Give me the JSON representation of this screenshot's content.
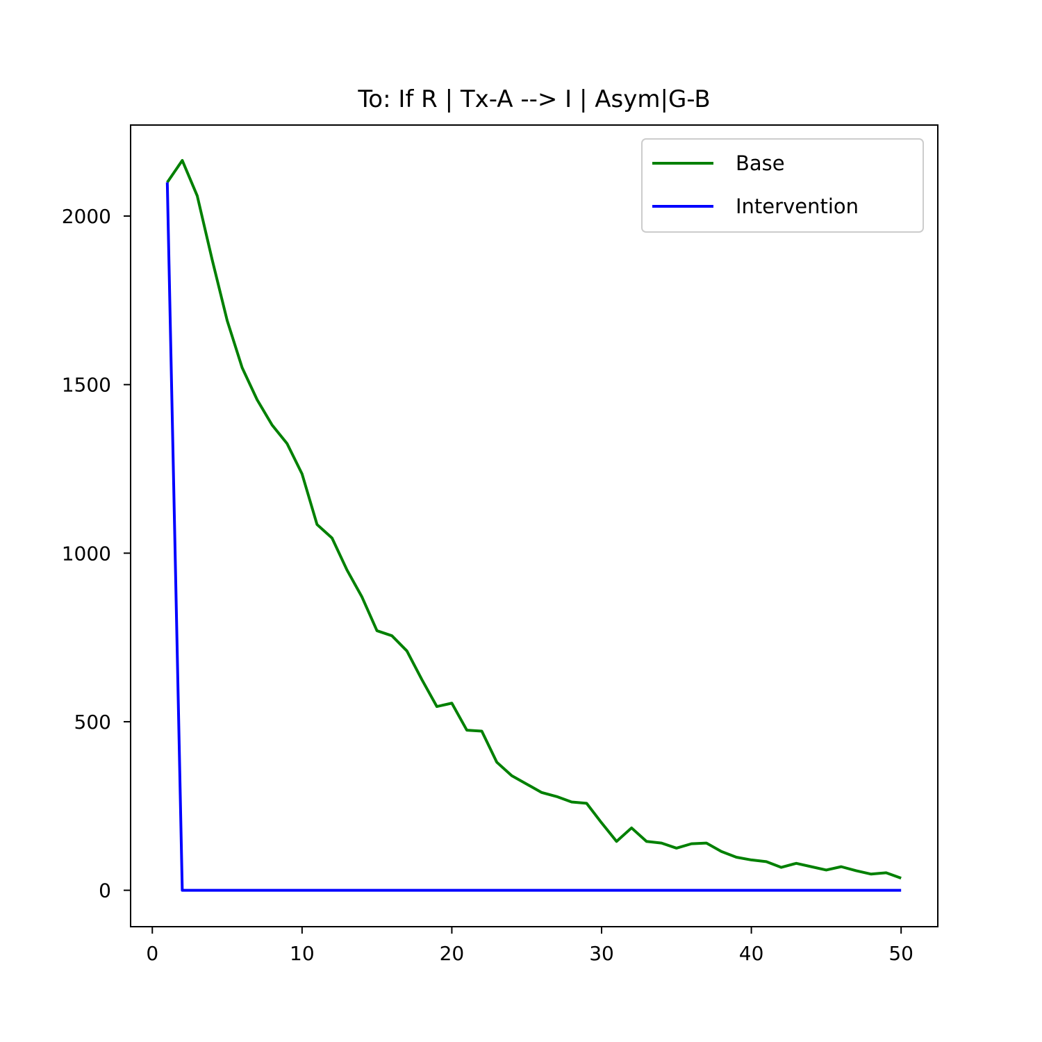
{
  "chart_data": {
    "type": "line",
    "title": "To: If R | Tx-A --> I | Asym|G-B",
    "xlabel": "",
    "ylabel": "",
    "xlim": [
      -1.45,
      52.45
    ],
    "ylim": [
      -108,
      2270
    ],
    "xticks": [
      0,
      10,
      20,
      30,
      40,
      50
    ],
    "yticks": [
      0,
      500,
      1000,
      1500,
      2000
    ],
    "grid": false,
    "legend_position": "upper right",
    "x": [
      1,
      2,
      3,
      4,
      5,
      6,
      7,
      8,
      9,
      10,
      11,
      12,
      13,
      14,
      15,
      16,
      17,
      18,
      19,
      20,
      21,
      22,
      23,
      24,
      25,
      26,
      27,
      28,
      29,
      30,
      31,
      32,
      33,
      34,
      35,
      36,
      37,
      38,
      39,
      40,
      41,
      42,
      43,
      44,
      45,
      46,
      47,
      48,
      49,
      50
    ],
    "series": [
      {
        "name": "Base",
        "color": "#008000",
        "values": [
          2100,
          2165,
          2060,
          1870,
          1690,
          1550,
          1455,
          1380,
          1325,
          1235,
          1085,
          1045,
          950,
          870,
          770,
          755,
          710,
          625,
          545,
          555,
          475,
          472,
          380,
          340,
          315,
          290,
          278,
          262,
          258,
          200,
          145,
          185,
          145,
          140,
          125,
          138,
          140,
          115,
          98,
          90,
          85,
          68,
          80,
          70,
          60,
          70,
          58,
          48,
          52,
          36
        ]
      },
      {
        "name": "Intervention",
        "color": "#0000ff",
        "values": [
          2100,
          0,
          0,
          0,
          0,
          0,
          0,
          0,
          0,
          0,
          0,
          0,
          0,
          0,
          0,
          0,
          0,
          0,
          0,
          0,
          0,
          0,
          0,
          0,
          0,
          0,
          0,
          0,
          0,
          0,
          0,
          0,
          0,
          0,
          0,
          0,
          0,
          0,
          0,
          0,
          0,
          0,
          0,
          0,
          0,
          0,
          0,
          0,
          0,
          0
        ]
      }
    ]
  }
}
